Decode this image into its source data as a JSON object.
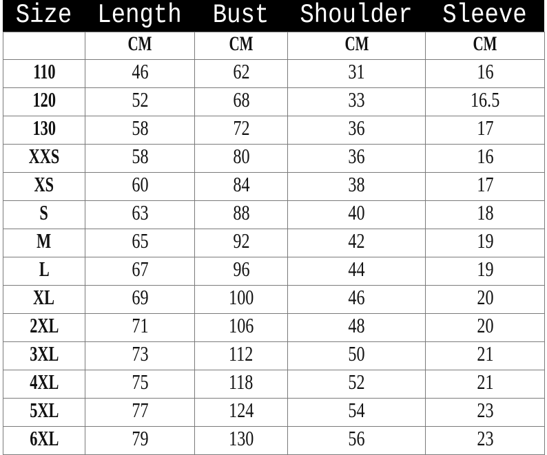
{
  "headers": [
    "Size",
    "Length",
    "Bust",
    "Shoulder",
    "Sleeve"
  ],
  "units": [
    "",
    "CM",
    "CM",
    "CM",
    "CM"
  ],
  "rows": [
    [
      "110",
      "46",
      "62",
      "31",
      "16"
    ],
    [
      "120",
      "52",
      "68",
      "33",
      "16.5"
    ],
    [
      "130",
      "58",
      "72",
      "36",
      "17"
    ],
    [
      "XXS",
      "58",
      "80",
      "36",
      "16"
    ],
    [
      "XS",
      "60",
      "84",
      "38",
      "17"
    ],
    [
      "S",
      "63",
      "88",
      "40",
      "18"
    ],
    [
      "M",
      "65",
      "92",
      "42",
      "19"
    ],
    [
      "L",
      "67",
      "96",
      "44",
      "19"
    ],
    [
      "XL",
      "69",
      "100",
      "46",
      "20"
    ],
    [
      "2XL",
      "71",
      "106",
      "48",
      "20"
    ],
    [
      "3XL",
      "73",
      "112",
      "50",
      "21"
    ],
    [
      "4XL",
      "75",
      "118",
      "52",
      "21"
    ],
    [
      "5XL",
      "77",
      "124",
      "54",
      "23"
    ],
    [
      "6XL",
      "79",
      "130",
      "56",
      "23"
    ]
  ],
  "colors": {
    "header_bg": "#000000",
    "header_text": "#ffffff",
    "grid": "#7a7a7a"
  }
}
